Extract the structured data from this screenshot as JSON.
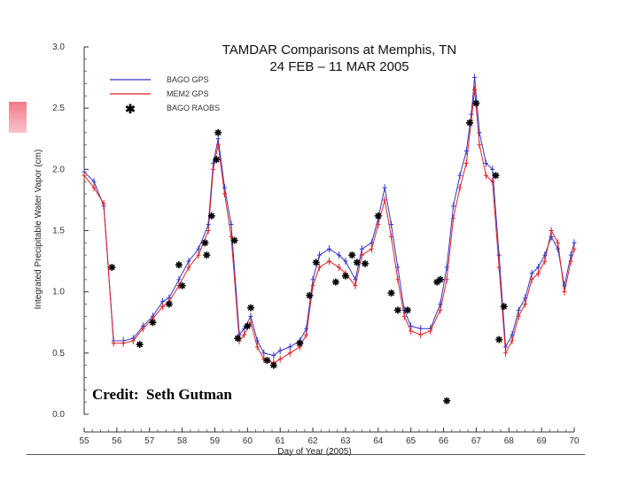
{
  "credit": "Credit:  Seth Gutman",
  "chart_data": {
    "type": "line",
    "title": "TAMDAR Comparisons at Memphis, TN",
    "subtitle": "24 FEB – 11 MAR 2005",
    "xlabel": "Day of Year (2005)",
    "ylabel": "Integrated Precipitable Water Vapor (cm)",
    "xlim": [
      55,
      70
    ],
    "ylim": [
      0,
      3
    ],
    "xticks": [
      "55",
      "56",
      "57",
      "58",
      "59",
      "60",
      "61",
      "62",
      "63",
      "64",
      "65",
      "66",
      "67",
      "68",
      "69",
      "70"
    ],
    "yticks": [
      "0.0",
      "0.5",
      "1.0",
      "1.5",
      "2.0",
      "2.5",
      "3.0"
    ],
    "legend_position": "top-left",
    "series": [
      {
        "name": "BAGO GPS",
        "color": "#3333cc",
        "marker": "plus",
        "x": [
          55.0,
          55.3,
          55.6,
          55.9,
          56.2,
          56.5,
          56.8,
          57.1,
          57.4,
          57.6,
          57.9,
          58.2,
          58.5,
          58.8,
          58.95,
          59.1,
          59.3,
          59.5,
          59.75,
          59.9,
          60.1,
          60.3,
          60.5,
          60.8,
          61.0,
          61.3,
          61.6,
          61.8,
          62.0,
          62.2,
          62.5,
          62.8,
          63.0,
          63.3,
          63.5,
          63.8,
          64.0,
          64.2,
          64.4,
          64.6,
          64.8,
          65.0,
          65.3,
          65.6,
          65.9,
          66.1,
          66.3,
          66.5,
          66.7,
          66.85,
          66.95,
          67.1,
          67.3,
          67.5,
          67.7,
          67.9,
          68.1,
          68.3,
          68.5,
          68.7,
          68.9,
          69.1,
          69.3,
          69.5,
          69.7,
          69.9,
          70.0
        ],
        "values": [
          1.98,
          1.9,
          1.7,
          0.6,
          0.6,
          0.62,
          0.72,
          0.8,
          0.92,
          0.95,
          1.1,
          1.25,
          1.35,
          1.55,
          2.05,
          2.25,
          1.85,
          1.55,
          0.65,
          0.7,
          0.8,
          0.6,
          0.5,
          0.48,
          0.52,
          0.55,
          0.6,
          0.7,
          1.1,
          1.3,
          1.35,
          1.3,
          1.25,
          1.1,
          1.35,
          1.4,
          1.6,
          1.85,
          1.55,
          1.2,
          0.85,
          0.72,
          0.7,
          0.7,
          0.9,
          1.2,
          1.7,
          1.95,
          2.15,
          2.45,
          2.75,
          2.3,
          2.05,
          2.0,
          1.3,
          0.55,
          0.65,
          0.85,
          0.95,
          1.15,
          1.2,
          1.3,
          1.45,
          1.35,
          1.05,
          1.3,
          1.4
        ]
      },
      {
        "name": "MEM2 GPS",
        "color": "#dd2222",
        "marker": "plus",
        "x": [
          55.0,
          55.3,
          55.6,
          55.9,
          56.2,
          56.5,
          56.8,
          57.1,
          57.4,
          57.6,
          57.9,
          58.2,
          58.5,
          58.8,
          58.95,
          59.1,
          59.3,
          59.5,
          59.75,
          59.9,
          60.1,
          60.3,
          60.5,
          60.8,
          61.0,
          61.3,
          61.6,
          61.8,
          62.0,
          62.2,
          62.5,
          62.8,
          63.0,
          63.3,
          63.5,
          63.8,
          64.0,
          64.2,
          64.4,
          64.6,
          64.8,
          65.0,
          65.3,
          65.6,
          65.9,
          66.1,
          66.3,
          66.5,
          66.7,
          66.85,
          66.95,
          67.1,
          67.3,
          67.5,
          67.7,
          67.9,
          68.1,
          68.3,
          68.5,
          68.7,
          68.9,
          69.1,
          69.3,
          69.5,
          69.7,
          69.9,
          70.0
        ],
        "values": [
          1.95,
          1.85,
          1.72,
          0.58,
          0.58,
          0.6,
          0.7,
          0.78,
          0.88,
          0.92,
          1.05,
          1.2,
          1.3,
          1.5,
          2.0,
          2.2,
          1.8,
          1.45,
          0.6,
          0.65,
          0.75,
          0.55,
          0.45,
          0.42,
          0.45,
          0.5,
          0.55,
          0.65,
          1.05,
          1.2,
          1.25,
          1.2,
          1.15,
          1.05,
          1.3,
          1.35,
          1.55,
          1.75,
          1.45,
          1.1,
          0.8,
          0.68,
          0.65,
          0.68,
          0.85,
          1.1,
          1.6,
          1.85,
          2.05,
          2.4,
          2.65,
          2.2,
          1.95,
          1.9,
          1.2,
          0.5,
          0.6,
          0.8,
          0.9,
          1.1,
          1.15,
          1.25,
          1.5,
          1.4,
          1.0,
          1.25,
          1.35
        ]
      },
      {
        "name": "BAGO RAOBS",
        "color": "#000000",
        "marker": "asterisk",
        "x": [
          55.85,
          56.7,
          57.1,
          57.6,
          58.0,
          57.9,
          58.7,
          58.75,
          58.9,
          59.05,
          59.1,
          59.6,
          59.7,
          60.0,
          60.1,
          60.6,
          60.8,
          61.6,
          61.9,
          62.1,
          62.7,
          63.0,
          63.2,
          63.35,
          63.6,
          64.0,
          64.4,
          64.6,
          64.9,
          65.8,
          65.9,
          66.1,
          66.8,
          67.0,
          67.6,
          67.7,
          67.85
        ],
        "values": [
          1.2,
          0.57,
          0.75,
          0.9,
          1.05,
          1.22,
          1.4,
          1.3,
          1.62,
          2.08,
          2.3,
          1.42,
          0.62,
          0.72,
          0.87,
          0.44,
          0.4,
          0.58,
          0.97,
          1.24,
          1.08,
          1.13,
          1.3,
          1.24,
          1.23,
          1.62,
          0.99,
          0.85,
          0.85,
          1.08,
          1.1,
          0.11,
          2.38,
          2.54,
          1.95,
          0.61,
          0.88
        ]
      }
    ]
  }
}
